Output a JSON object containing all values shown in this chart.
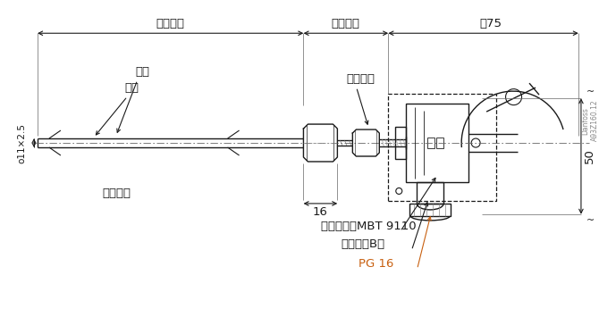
{
  "bg_color": "#ffffff",
  "line_color": "#1a1a1a",
  "orange_color": "#c86010",
  "label_插入长度": "插入长度",
  "label_接长长度": "接长长度",
  "label_焊接": "焊接",
  "label_护管": "护管",
  "label_连接螺母": "连接螺母",
  "label_压力联接": "压力联接",
  "label_o11x25": "o11×2.5",
  "label_16": "16",
  "label_75": "～75",
  "label_50": "50",
  "label_变送器": "变送器型式MBT 9110",
  "label_联接头": "联接头，B型",
  "label_PG16": "PG 16",
  "label_danfoss": "Danfoss\nA93Z160.12",
  "font_size_main": 9.5,
  "font_size_small": 8
}
